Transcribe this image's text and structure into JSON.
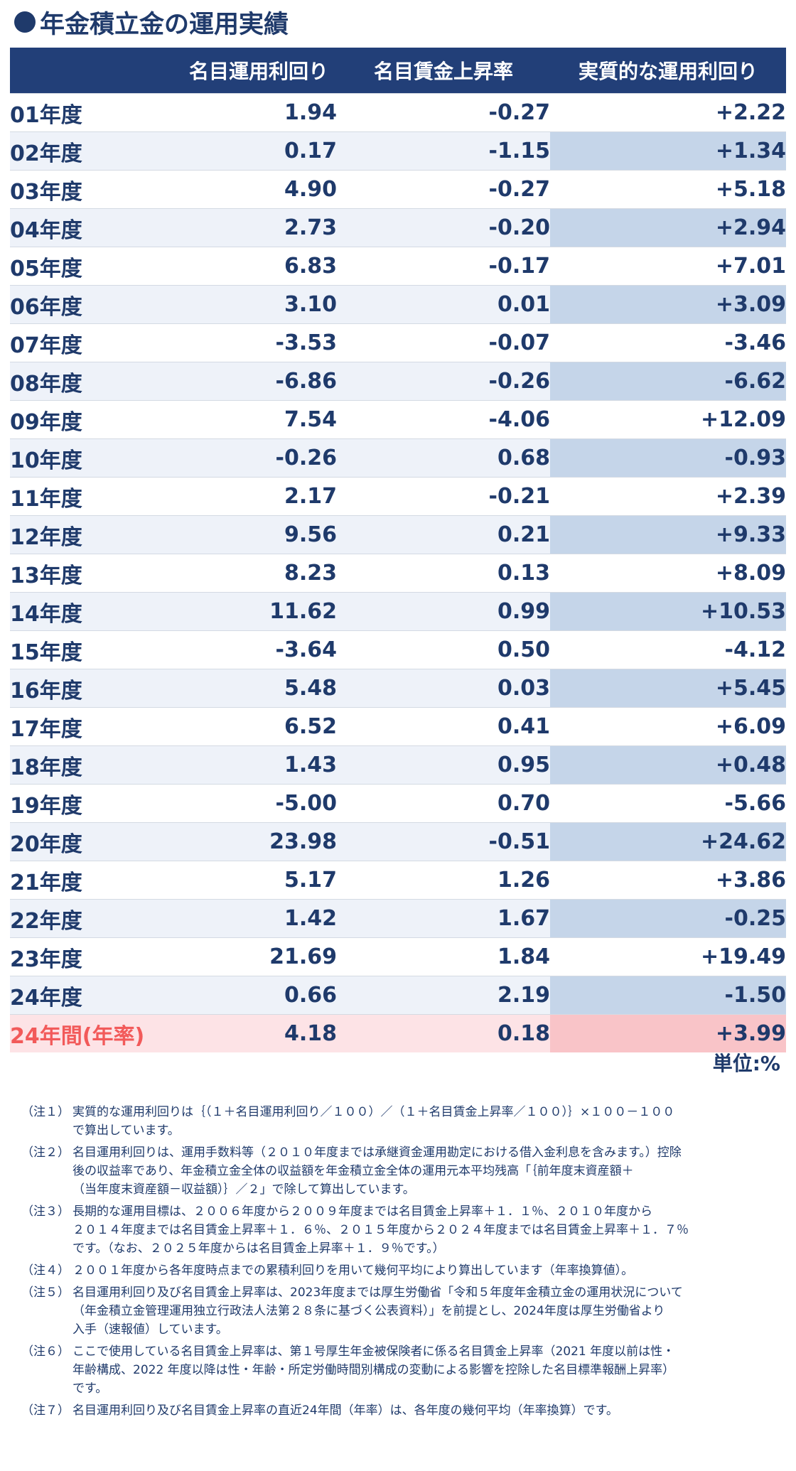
{
  "title": "年金積立金の運用実績",
  "headers": [
    "",
    "名目運用利回り",
    "名目賃金上昇率",
    "実質的な運用利回り"
  ],
  "rows": [
    {
      "year": "01年度",
      "nominal": "1.94",
      "wage": "-0.27",
      "real": "+2.22"
    },
    {
      "year": "02年度",
      "nominal": "0.17",
      "wage": "-1.15",
      "real": "+1.34"
    },
    {
      "year": "03年度",
      "nominal": "4.90",
      "wage": "-0.27",
      "real": "+5.18"
    },
    {
      "year": "04年度",
      "nominal": "2.73",
      "wage": "-0.20",
      "real": "+2.94"
    },
    {
      "year": "05年度",
      "nominal": "6.83",
      "wage": "-0.17",
      "real": "+7.01"
    },
    {
      "year": "06年度",
      "nominal": "3.10",
      "wage": "0.01",
      "real": "+3.09"
    },
    {
      "year": "07年度",
      "nominal": "-3.53",
      "wage": "-0.07",
      "real": "-3.46"
    },
    {
      "year": "08年度",
      "nominal": "-6.86",
      "wage": "-0.26",
      "real": "-6.62"
    },
    {
      "year": "09年度",
      "nominal": "7.54",
      "wage": "-4.06",
      "real": "+12.09"
    },
    {
      "year": "10年度",
      "nominal": "-0.26",
      "wage": "0.68",
      "real": "-0.93"
    },
    {
      "year": "11年度",
      "nominal": "2.17",
      "wage": "-0.21",
      "real": "+2.39"
    },
    {
      "year": "12年度",
      "nominal": "9.56",
      "wage": "0.21",
      "real": "+9.33"
    },
    {
      "year": "13年度",
      "nominal": "8.23",
      "wage": "0.13",
      "real": "+8.09"
    },
    {
      "year": "14年度",
      "nominal": "11.62",
      "wage": "0.99",
      "real": "+10.53"
    },
    {
      "year": "15年度",
      "nominal": "-3.64",
      "wage": "0.50",
      "real": "-4.12"
    },
    {
      "year": "16年度",
      "nominal": "5.48",
      "wage": "0.03",
      "real": "+5.45"
    },
    {
      "year": "17年度",
      "nominal": "6.52",
      "wage": "0.41",
      "real": "+6.09"
    },
    {
      "year": "18年度",
      "nominal": "1.43",
      "wage": "0.95",
      "real": "+0.48"
    },
    {
      "year": "19年度",
      "nominal": "-5.00",
      "wage": "0.70",
      "real": "-5.66"
    },
    {
      "year": "20年度",
      "nominal": "23.98",
      "wage": "-0.51",
      "real": "+24.62"
    },
    {
      "year": "21年度",
      "nominal": "5.17",
      "wage": "1.26",
      "real": "+3.86"
    },
    {
      "year": "22年度",
      "nominal": "1.42",
      "wage": "1.67",
      "real": "-0.25"
    },
    {
      "year": "23年度",
      "nominal": "21.69",
      "wage": "1.84",
      "real": "+19.49"
    },
    {
      "year": "24年度",
      "nominal": "0.66",
      "wage": "2.19",
      "real": "-1.50"
    }
  ],
  "total": {
    "year": "24年間(年率)",
    "nominal": "4.18",
    "wage": "0.18",
    "real": "+3.99"
  },
  "unit": "単位:%",
  "notes": [
    {
      "label": "（注１）",
      "text": "実質的な運用利回りは｛（１＋名目運用利回り／１００）／（１＋名目賃金上昇率／１００）｝×１００－１００\nで算出しています。"
    },
    {
      "label": "（注２）",
      "text": "名目運用利回りは、運用手数料等（２０１０年度までは承継資金運用勘定における借入金利息を含みます。）控除\n後の収益率であり、年金積立金全体の収益額を年金積立金全体の運用元本平均残高「｛前年度末資産額＋\n（当年度末資産額－収益額）｝／２」で除して算出しています。"
    },
    {
      "label": "（注３）",
      "text": "長期的な運用目標は、２００６年度から２００９年度までは名目賃金上昇率＋１．１％、２０１０年度から\n２０１４年度までは名目賃金上昇率＋１．６％、２０１５年度から２０２４年度までは名目賃金上昇率＋１．７％\nです。（なお、２０２５年度からは名目賃金上昇率＋１．９％です。）"
    },
    {
      "label": "（注４）",
      "text": "２００１年度から各年度時点までの累積利回りを用いて幾何平均により算出しています（年率換算値）。"
    },
    {
      "label": "（注５）",
      "text": "名目運用利回り及び名目賃金上昇率は、2023年度までは厚生労働省「令和５年度年金積立金の運用状況について\n（年金積立金管理運用独立行政法人法第２８条に基づく公表資料）」を前提とし、2024年度は厚生労働省より\n入手（速報値）しています。"
    },
    {
      "label": "（注６）",
      "text": "ここで使用している名目賃金上昇率は、第１号厚生年金被保険者に係る名目賃金上昇率（2021 年度以前は性・\n年齢構成、2022 年度以降は性・年齢・所定労働時間別構成の変動による影響を控除した名目標準報酬上昇率）\nです。"
    },
    {
      "label": "（注７）",
      "text": "名目運用利回り及び名目賃金上昇率の直近24年間（年率）は、各年度の幾何平均（年率換算）です。"
    }
  ]
}
